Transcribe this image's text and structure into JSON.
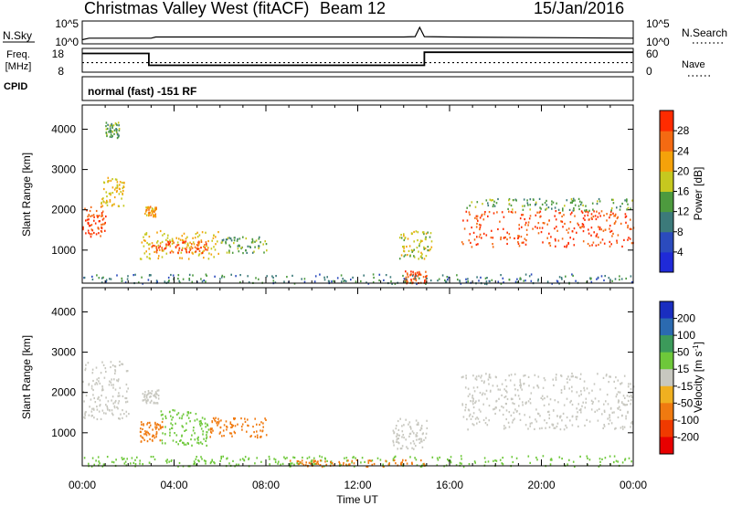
{
  "header": {
    "title": "Christmas Valley West (fitACF)",
    "beam": "Beam 12",
    "date": "15/Jan/2016"
  },
  "nsky_panel": {
    "left_label": "N.Sky",
    "right_label": "N.Search",
    "left_ticks": [
      "10^5",
      "10^0"
    ],
    "right_ticks": [
      "10^5",
      "10^0"
    ]
  },
  "freq_panel": {
    "left_label_line1": "Freq.",
    "left_label_line2": "[MHz]",
    "left_ticks": [
      "18",
      "8"
    ],
    "right_ticks": [
      "60",
      "0"
    ],
    "right_label": "Nave"
  },
  "cpid": {
    "label": "CPID",
    "text": "normal (fast) -151 RF"
  },
  "time_axis": {
    "label": "Time UT",
    "ticks": [
      "00:00",
      "04:00",
      "08:00",
      "12:00",
      "16:00",
      "20:00",
      "00:00"
    ]
  },
  "range_axis": {
    "label": "Slant Range [km]",
    "ticks": [
      "1000",
      "2000",
      "3000",
      "4000"
    ]
  },
  "power_scale": {
    "label": "Power [dB]",
    "ticks": [
      "4",
      "8",
      "12",
      "16",
      "20",
      "24",
      "28"
    ],
    "colors": [
      "#1f2ad8",
      "#2b4bbd",
      "#3c7a7a",
      "#4d9a3e",
      "#c6c81f",
      "#f5a20a",
      "#f46a12",
      "#ff2b00"
    ]
  },
  "velocity_scale": {
    "label_main": "Velocity",
    "label_units": "[m s",
    "label_exp": "-1",
    "label_close": "]",
    "ticks": [
      "200",
      "100",
      "50",
      "15",
      "-15",
      "-50",
      "-100",
      "-200"
    ],
    "colors": [
      "#1a2ec0",
      "#2b6ab0",
      "#3c9a5a",
      "#6ec83a",
      "#c8c8c0",
      "#f0b020",
      "#f07a10",
      "#f03a00",
      "#e80000"
    ]
  },
  "chart_data": {
    "type": "heatmap",
    "x_axis": {
      "label": "Time UT",
      "range": [
        "00:00",
        "24:00"
      ]
    },
    "y_axis": {
      "label": "Slant Range [km]",
      "range": [
        180,
        4600
      ]
    },
    "nsky_trace": {
      "x_hours": [
        0,
        0.3,
        3,
        3.2,
        14,
        14.5,
        14.7,
        14.9,
        16,
        24
      ],
      "values_log10": [
        0.6,
        1.0,
        1.0,
        1.3,
        1.3,
        1.4,
        3.8,
        1.4,
        1.3,
        1.0
      ]
    },
    "freq_trace": {
      "x_hours": [
        0,
        2.9,
        2.9,
        14.9,
        14.9,
        24
      ],
      "mhz": [
        16.4,
        16.4,
        10.5,
        10.5,
        17.0,
        17.0
      ]
    },
    "nave_trace": {
      "x_hours": [
        0,
        24
      ],
      "values": [
        23,
        23
      ]
    },
    "power_regions": [
      {
        "t0": 0.0,
        "t1": 1.0,
        "r0": 1350,
        "r1": 2100,
        "db": 28
      },
      {
        "t0": 0.8,
        "t1": 1.8,
        "r0": 2100,
        "r1": 2850,
        "db": 20
      },
      {
        "t0": 1.0,
        "t1": 1.6,
        "r0": 3800,
        "r1": 4200,
        "db": 14
      },
      {
        "t0": 2.7,
        "t1": 3.2,
        "r0": 1850,
        "r1": 2100,
        "db": 22
      },
      {
        "t0": 2.5,
        "t1": 6.0,
        "r0": 800,
        "r1": 1500,
        "db": 20
      },
      {
        "t0": 3.0,
        "t1": 5.5,
        "r0": 950,
        "r1": 1250,
        "db": 28
      },
      {
        "t0": 6.0,
        "t1": 8.0,
        "r0": 950,
        "r1": 1350,
        "db": 14
      },
      {
        "t0": 13.8,
        "t1": 15.2,
        "r0": 800,
        "r1": 1500,
        "db": 18
      },
      {
        "t0": 14.0,
        "t1": 15.0,
        "r0": 200,
        "r1": 500,
        "db": 28
      },
      {
        "t0": 16.5,
        "t1": 24.0,
        "r0": 1100,
        "r1": 2000,
        "db": 28
      },
      {
        "t0": 16.7,
        "t1": 24.0,
        "r0": 2000,
        "r1": 2300,
        "db": 14
      },
      {
        "t0": 0.0,
        "t1": 24.0,
        "r0": 180,
        "r1": 420,
        "db": 10
      }
    ],
    "velocity_regions": [
      {
        "t0": 0.0,
        "t1": 2.0,
        "r0": 1350,
        "r1": 2800,
        "v": 0
      },
      {
        "t0": 2.6,
        "t1": 3.3,
        "r0": 1750,
        "r1": 2100,
        "v": 0
      },
      {
        "t0": 2.5,
        "t1": 3.5,
        "r0": 800,
        "r1": 1300,
        "v": -60
      },
      {
        "t0": 3.4,
        "t1": 5.5,
        "r0": 700,
        "r1": 1600,
        "v": 40
      },
      {
        "t0": 5.5,
        "t1": 8.0,
        "r0": 900,
        "r1": 1400,
        "v": -70
      },
      {
        "t0": 13.5,
        "t1": 15.0,
        "r0": 600,
        "r1": 1400,
        "v": 0
      },
      {
        "t0": 16.5,
        "t1": 24.0,
        "r0": 1100,
        "r1": 2500,
        "v": 0
      },
      {
        "t0": 0.0,
        "t1": 24.0,
        "r0": 180,
        "r1": 450,
        "v": 45
      },
      {
        "t0": 9.0,
        "t1": 15.0,
        "r0": 180,
        "r1": 350,
        "v": -60
      }
    ]
  }
}
